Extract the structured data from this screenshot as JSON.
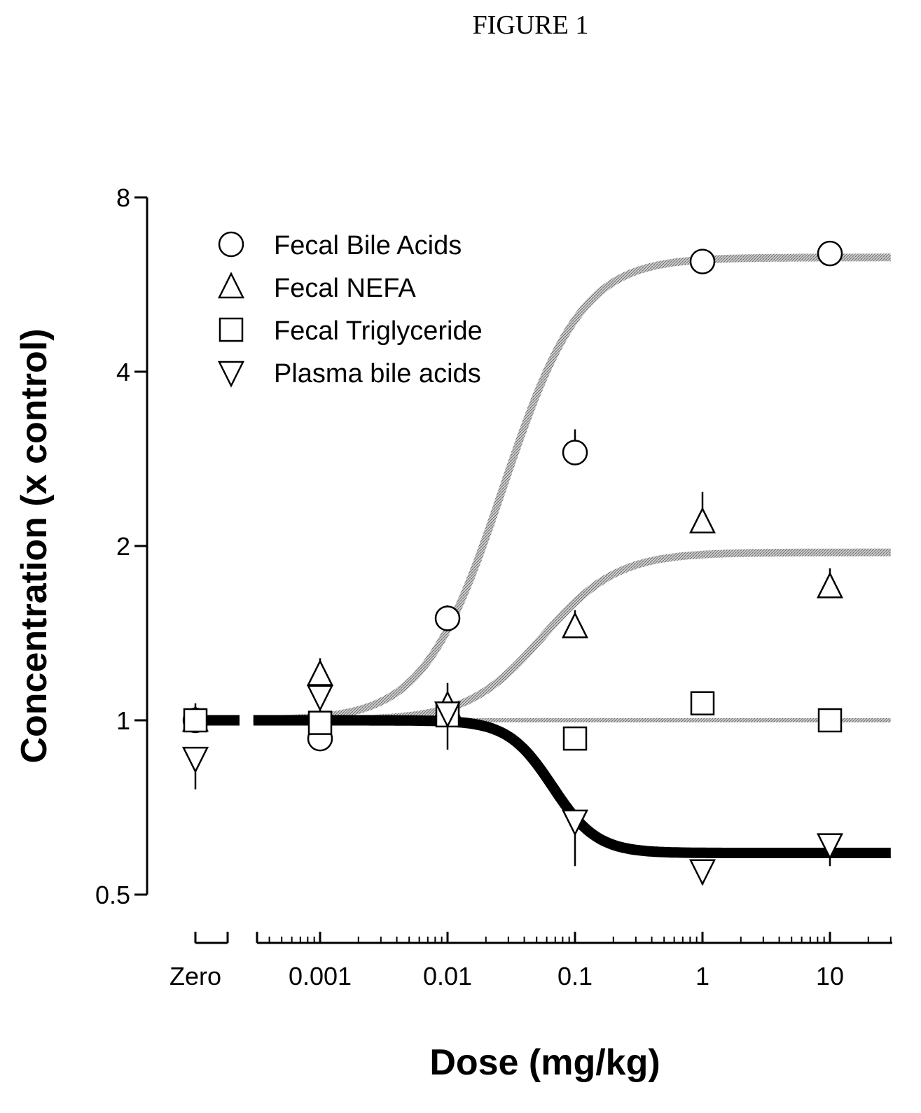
{
  "figure_label": "FIGURE 1",
  "chart_data": {
    "type": "scatter",
    "title": "",
    "xlabel": "Dose (mg/kg)",
    "ylabel": "Concentration (x control)",
    "x_scale": "log",
    "y_scale": "log2",
    "xlim": [
      0.0003,
      30
    ],
    "ylim": [
      0.5,
      8
    ],
    "x_ticks": [
      "0.001",
      "0.01",
      "0.1",
      "1",
      "10"
    ],
    "zero_tick_label": "Zero",
    "y_ticks": [
      {
        "value": 0.5,
        "label": "0.5"
      },
      {
        "value": 1,
        "label": "1"
      },
      {
        "value": 2,
        "label": "2"
      },
      {
        "value": 4,
        "label": "4"
      },
      {
        "value": 8,
        "label": "8"
      }
    ],
    "legend_position": "top-left",
    "series": [
      {
        "name": "Fecal Bile Acids",
        "marker": "circle",
        "curve_color": "#a8a8a8",
        "curve_width": 11,
        "fit": {
          "bottom": 1.0,
          "top": 6.3,
          "ec50": 0.05,
          "hill": 1.5
        },
        "points": [
          {
            "x": "zero",
            "y": 1.0,
            "err": 0.07
          },
          {
            "x": 0.001,
            "y": 0.93,
            "err": 0.04
          },
          {
            "x": 0.01,
            "y": 1.5,
            "err": 0.08
          },
          {
            "x": 0.1,
            "y": 2.9,
            "err": 0.28
          },
          {
            "x": 1,
            "y": 6.2,
            "err": 0.2
          },
          {
            "x": 10,
            "y": 6.4,
            "err": 0.15
          }
        ]
      },
      {
        "name": "Fecal NEFA",
        "marker": "triangle-up",
        "curve_color": "#a8a8a8",
        "curve_width": 11,
        "fit": {
          "bottom": 1.0,
          "top": 1.95,
          "ec50": 0.07,
          "hill": 1.5
        },
        "points": [
          {
            "x": "zero",
            "y": 1.0,
            "err": 0.02
          },
          {
            "x": 0.001,
            "y": 1.2,
            "err": 0.08
          },
          {
            "x": 0.01,
            "y": 1.06,
            "err": 0.1
          },
          {
            "x": 0.1,
            "y": 1.45,
            "err": 0.1
          },
          {
            "x": 1,
            "y": 2.2,
            "err": 0.28
          },
          {
            "x": 10,
            "y": 1.7,
            "err": 0.13
          }
        ]
      },
      {
        "name": "Fecal Triglyceride",
        "marker": "square",
        "curve_color": "#b8b8b8",
        "curve_width": 6,
        "fit": {
          "bottom": 1.0,
          "top": 1.0,
          "ec50": 1,
          "hill": 1
        },
        "points": [
          {
            "x": "zero",
            "y": 1.0,
            "err": 0.02
          },
          {
            "x": 0.001,
            "y": 0.99,
            "err": 0.03
          },
          {
            "x": 0.01,
            "y": 1.02,
            "err": 0.03
          },
          {
            "x": 0.1,
            "y": 0.93,
            "err": 0.03
          },
          {
            "x": 1,
            "y": 1.07,
            "err": 0.03
          },
          {
            "x": 10,
            "y": 1.0,
            "err": 0.03
          }
        ]
      },
      {
        "name": "Plasma bile acids",
        "marker": "triangle-down",
        "curve_color": "#000000",
        "curve_width": 15,
        "fit": {
          "bottom": 1.0,
          "top": 0.59,
          "ec50": 0.06,
          "hill": 2.5
        },
        "points": [
          {
            "x": "zero",
            "y": 0.86,
            "err": 0.1
          },
          {
            "x": 0.001,
            "y": 1.1,
            "err": 0.1
          },
          {
            "x": 0.01,
            "y": 1.03,
            "err": 0.14
          },
          {
            "x": 0.1,
            "y": 0.67,
            "err": 0.11
          },
          {
            "x": 1,
            "y": 0.55,
            "err": 0.03
          },
          {
            "x": 10,
            "y": 0.61,
            "err": 0.05
          }
        ]
      }
    ]
  }
}
